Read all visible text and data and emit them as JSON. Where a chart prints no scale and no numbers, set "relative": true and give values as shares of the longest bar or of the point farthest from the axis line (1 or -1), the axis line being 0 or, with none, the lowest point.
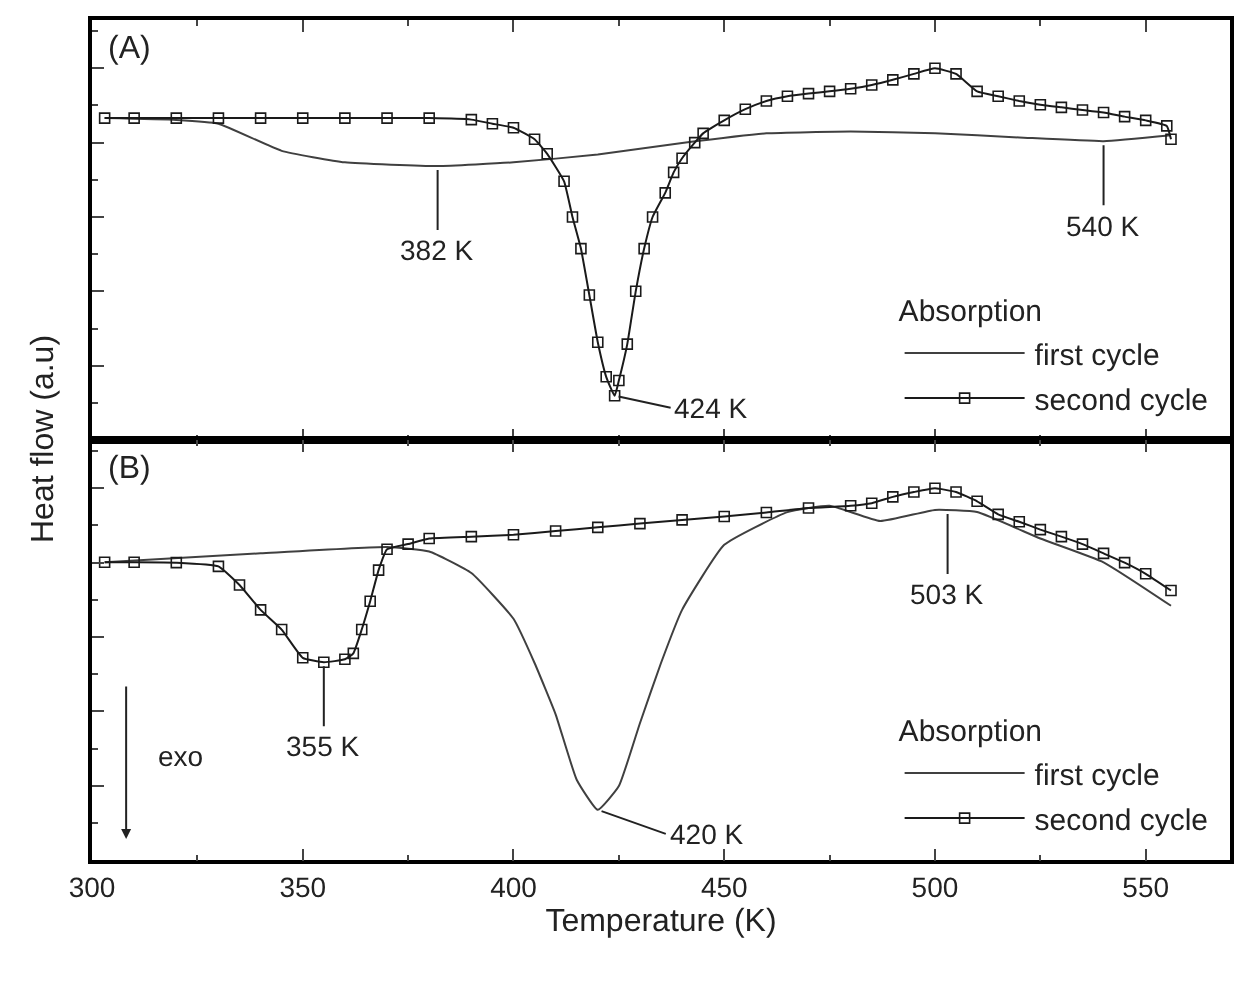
{
  "chart_data": [
    {
      "type": "line",
      "title": "(A)",
      "ylabel": "Heat flow (a.u)",
      "relative": true,
      "xlim": [
        300,
        570
      ],
      "xticks": [
        300,
        350,
        400,
        450,
        500,
        550
      ],
      "tick_labels": false,
      "legend": "bottom right",
      "legend_title": "Absorption",
      "series": [
        {
          "name": "first cycle",
          "color": "#404040",
          "marker": "none",
          "x": [
            303,
            320,
            330,
            345,
            360,
            382,
            400,
            420,
            440,
            460,
            480,
            500,
            520,
            540,
            556
          ],
          "values": [
            0.866,
            0.861,
            0.851,
            0.778,
            0.747,
            0.737,
            0.747,
            0.768,
            0.799,
            0.825,
            0.83,
            0.825,
            0.814,
            0.804,
            0.82
          ]
        },
        {
          "name": "second cycle",
          "color": "#1a1a1a",
          "marker": "square",
          "x": [
            303,
            310,
            320,
            330,
            340,
            350,
            360,
            370,
            380,
            390,
            395,
            400,
            405,
            408,
            412,
            414,
            416,
            418,
            420,
            422,
            424,
            425,
            427,
            429,
            431,
            433,
            436,
            438,
            440,
            443,
            445,
            450,
            455,
            460,
            465,
            470,
            475,
            480,
            485,
            490,
            495,
            500,
            505,
            510,
            515,
            520,
            525,
            530,
            535,
            540,
            545,
            550,
            555,
            556
          ],
          "values": [
            0.866,
            0.866,
            0.866,
            0.866,
            0.866,
            0.866,
            0.866,
            0.866,
            0.866,
            0.862,
            0.851,
            0.84,
            0.809,
            0.77,
            0.696,
            0.6,
            0.515,
            0.39,
            0.263,
            0.17,
            0.119,
            0.16,
            0.258,
            0.4,
            0.515,
            0.6,
            0.665,
            0.72,
            0.758,
            0.8,
            0.825,
            0.86,
            0.89,
            0.912,
            0.925,
            0.932,
            0.938,
            0.945,
            0.955,
            0.969,
            0.985,
            1.0,
            0.985,
            0.938,
            0.925,
            0.912,
            0.902,
            0.895,
            0.888,
            0.881,
            0.87,
            0.86,
            0.845,
            0.809
          ]
        }
      ],
      "annotations": [
        {
          "text": "382 K",
          "x": 382,
          "y": 0.737
        },
        {
          "text": "424 K",
          "x": 424,
          "y": 0.119
        },
        {
          "text": "540 K",
          "x": 540,
          "y": 0.804
        }
      ]
    },
    {
      "type": "line",
      "title": "(B)",
      "xlabel": "Temperature (K)",
      "relative": true,
      "xlim": [
        300,
        570
      ],
      "xticks": [
        300,
        350,
        400,
        450,
        500,
        550
      ],
      "tick_labels": "x",
      "legend": "bottom right",
      "legend_title": "Absorption",
      "series": [
        {
          "name": "first cycle",
          "color": "#404040",
          "marker": "none",
          "x": [
            303,
            340,
            370,
            380,
            390,
            400,
            405,
            410,
            415,
            420,
            425,
            430,
            435,
            440,
            450,
            465,
            475,
            487,
            500,
            510,
            525,
            540,
            556
          ],
          "values": [
            0.801,
            0.825,
            0.842,
            0.83,
            0.772,
            0.649,
            0.53,
            0.392,
            0.216,
            0.135,
            0.199,
            0.368,
            0.53,
            0.673,
            0.848,
            0.936,
            0.953,
            0.912,
            0.942,
            0.936,
            0.865,
            0.801,
            0.684
          ]
        },
        {
          "name": "second cycle",
          "color": "#1a1a1a",
          "marker": "square",
          "x": [
            303,
            310,
            320,
            330,
            335,
            340,
            345,
            350,
            355,
            360,
            362,
            364,
            366,
            368,
            370,
            375,
            380,
            390,
            400,
            410,
            420,
            430,
            440,
            450,
            460,
            470,
            480,
            485,
            490,
            495,
            500,
            505,
            510,
            515,
            520,
            525,
            530,
            535,
            540,
            545,
            550,
            556
          ],
          "values": [
            0.801,
            0.801,
            0.8,
            0.79,
            0.74,
            0.673,
            0.62,
            0.544,
            0.532,
            0.54,
            0.556,
            0.62,
            0.696,
            0.78,
            0.836,
            0.85,
            0.865,
            0.87,
            0.875,
            0.885,
            0.895,
            0.905,
            0.915,
            0.924,
            0.935,
            0.947,
            0.953,
            0.96,
            0.977,
            0.99,
            1.0,
            0.99,
            0.965,
            0.93,
            0.91,
            0.889,
            0.87,
            0.85,
            0.825,
            0.8,
            0.77,
            0.725
          ]
        }
      ],
      "annotations": [
        {
          "text": "355 K",
          "x": 355,
          "y": 0.532
        },
        {
          "text": "420 K",
          "x": 420,
          "y": 0.135
        },
        {
          "text": "503 K",
          "x": 503,
          "y": 0.942
        },
        "exo"
      ]
    }
  ]
}
